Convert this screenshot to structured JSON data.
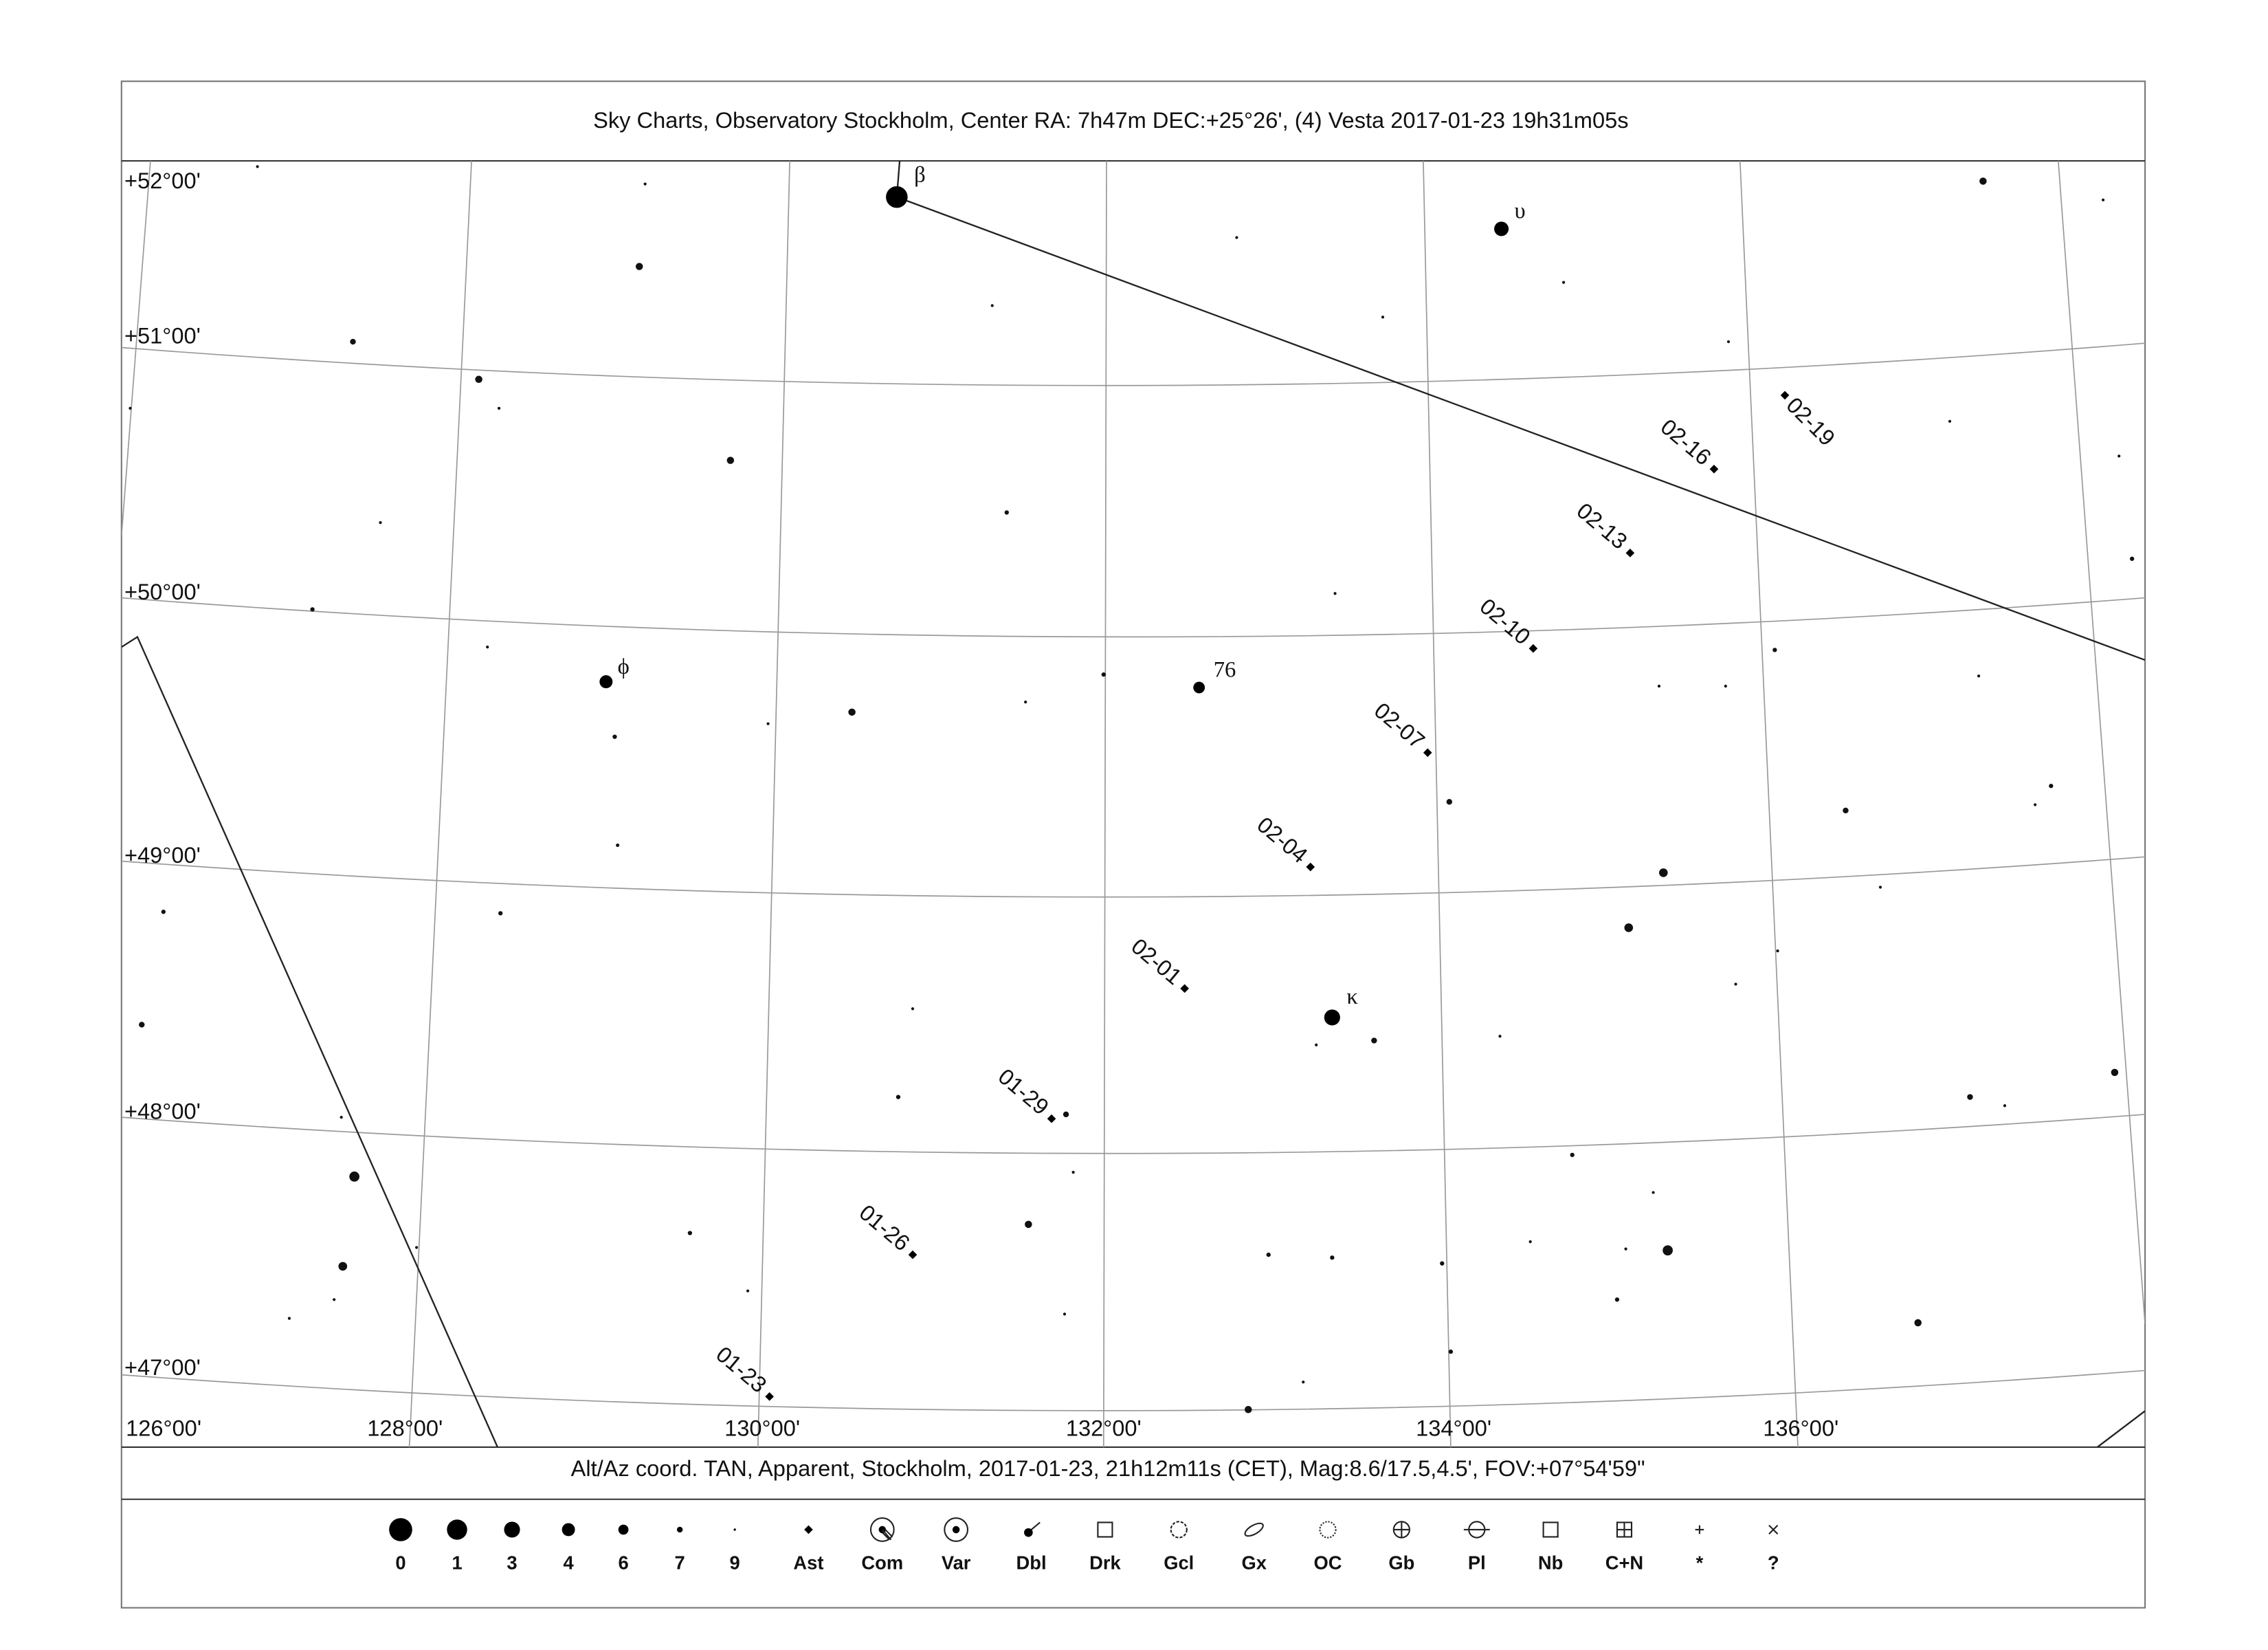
{
  "title": "Sky Charts, Observatory Stockholm, Center RA:  7h47m DEC:+25°26', (4) Vesta 2017-01-23 19h31m05s",
  "footer": "Alt/Az coord. TAN, Apparent, Stockholm, 2017-01-23, 21h12m11s (CET), Mag:8.6/17.5,4.5', FOV:+07°54'59\"",
  "declination_labels": [
    "+52°00'",
    "+51°00'",
    "+50°00'",
    "+49°00'",
    "+48°00'",
    "+47°00'"
  ],
  "ra_labels": [
    "126°00'",
    "128°00'",
    "130°00'",
    "132°00'",
    "134°00'",
    "136°00'"
  ],
  "star_labels": [
    "β",
    "υ",
    "ϕ",
    "76",
    "κ"
  ],
  "asteroid_dates": [
    "01-23",
    "01-26",
    "01-29",
    "02-01",
    "02-04",
    "02-07",
    "02-10",
    "02-13",
    "02-16",
    "02-19"
  ],
  "legend": [
    "0",
    "1",
    "3",
    "4",
    "6",
    "7",
    "9",
    "Ast",
    "Com",
    "Var",
    "Dbl",
    "Drk",
    "Gcl",
    "Gx",
    "OC",
    "Gb",
    "Pl",
    "Nb",
    "C+N",
    "*",
    "?"
  ]
}
